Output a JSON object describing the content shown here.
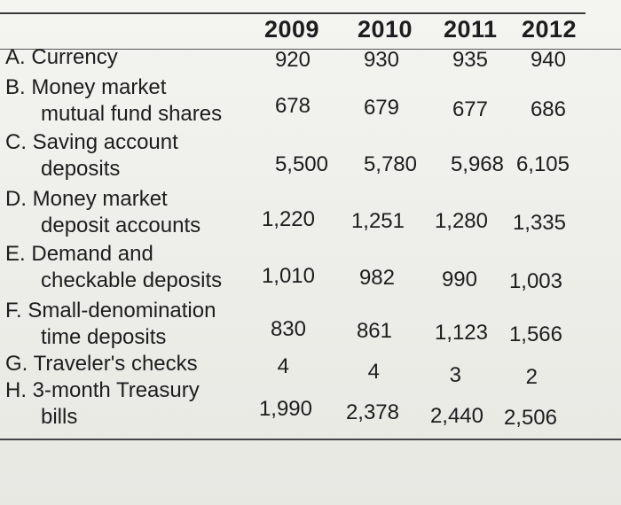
{
  "table": {
    "years": [
      "2009",
      "2010",
      "2011",
      "2012"
    ],
    "rows": [
      {
        "letter": "A.",
        "label_line1": "Currency",
        "label_line2": "",
        "values": [
          "920",
          "930",
          "935",
          "940"
        ]
      },
      {
        "letter": "B.",
        "label_line1": "Money market",
        "label_line2": "mutual fund shares",
        "values": [
          "678",
          "679",
          "677",
          "686"
        ]
      },
      {
        "letter": "C.",
        "label_line1": "Saving account",
        "label_line2": "deposits",
        "values": [
          "5,500",
          "5,780",
          "5,968",
          "6,105"
        ]
      },
      {
        "letter": "D.",
        "label_line1": "Money market",
        "label_line2": "deposit accounts",
        "values": [
          "1,220",
          "1,251",
          "1,280",
          "1,335"
        ]
      },
      {
        "letter": "E.",
        "label_line1": "Demand and",
        "label_line2": "checkable deposits",
        "values": [
          "1,010",
          "982",
          "990",
          "1,003"
        ]
      },
      {
        "letter": "F.",
        "label_line1": "Small-denomination",
        "label_line2": "time deposits",
        "values": [
          "830",
          "861",
          "1,123",
          "1,566"
        ]
      },
      {
        "letter": "G.",
        "label_line1": "Traveler's checks",
        "label_line2": "",
        "values": [
          "4",
          "4",
          "3",
          "2"
        ]
      },
      {
        "letter": "H.",
        "label_line1": "3-month Treasury",
        "label_line2": "bills",
        "values": [
          "1,990",
          "2,378",
          "2,440",
          "2,506"
        ]
      }
    ]
  }
}
